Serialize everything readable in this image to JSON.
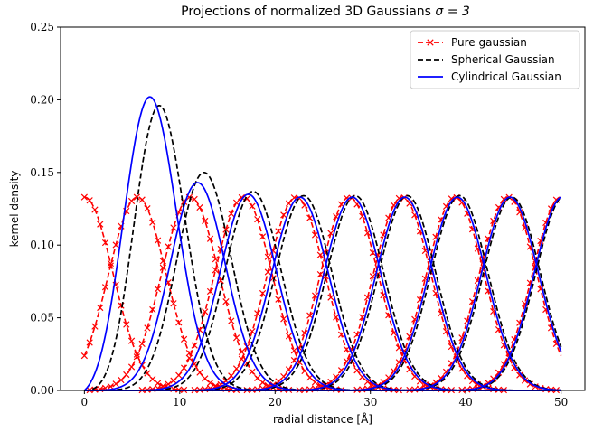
{
  "chart_data": {
    "type": "line",
    "title_text": "Projections of normalized 3D Gaussians ",
    "title_math": "σ = 3",
    "xlabel": "radial distance [Å]",
    "ylabel": "kernel density",
    "xlim": [
      -2.5,
      52.5
    ],
    "ylim": [
      0,
      0.25
    ],
    "xticks": [
      0,
      10,
      20,
      30,
      40,
      50
    ],
    "yticks": [
      0.0,
      0.05,
      0.1,
      0.15,
      0.2,
      0.25
    ],
    "ytick_labels": [
      "0.00",
      "0.05",
      "0.10",
      "0.15",
      "0.20",
      "0.25"
    ],
    "xtick_labels": [
      "0",
      "10",
      "20",
      "30",
      "40",
      "50"
    ],
    "sigma": 3,
    "centers": [
      0.0,
      5.56,
      11.11,
      16.67,
      22.22,
      27.78,
      33.33,
      38.89,
      44.44,
      50.0
    ],
    "x_range": [
      0,
      50
    ],
    "grid": false,
    "legend_position": "top-right",
    "series": [
      {
        "name": "Pure gaussian",
        "color": "#ff0000",
        "style": "dashed-x"
      },
      {
        "name": "Spherical Gaussian",
        "color": "#000000",
        "style": "dashed"
      },
      {
        "name": "Cylindrical Gaussian",
        "color": "#0000ff",
        "style": "solid"
      }
    ],
    "peak_values": {
      "pure": [
        0.133,
        0.133,
        0.133,
        0.133,
        0.133,
        0.133,
        0.133,
        0.133,
        0.133,
        0.133
      ],
      "spherical": [
        0.0,
        0.196,
        0.15,
        0.137,
        0.134,
        0.134,
        0.134,
        0.134,
        0.133,
        0.133
      ],
      "cylindrical": [
        0.0,
        0.202,
        0.143,
        0.135,
        0.133,
        0.133,
        0.133,
        0.133,
        0.133,
        0.133
      ]
    }
  }
}
